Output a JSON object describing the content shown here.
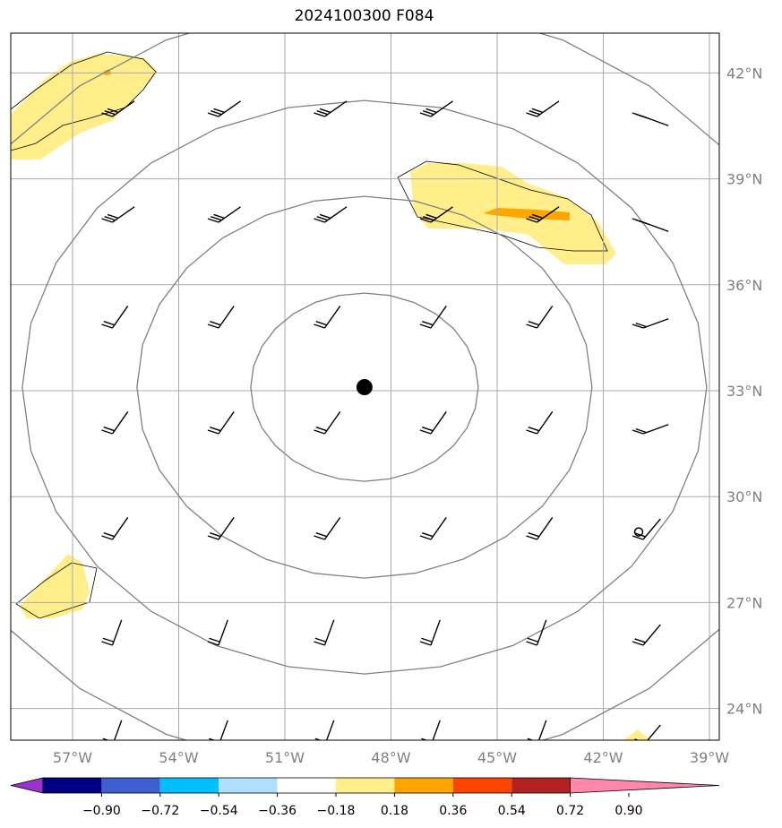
{
  "title": "2024100300 F084",
  "map": {
    "lon_range": [
      -59.3,
      -38.8
    ],
    "lat_range": [
      23,
      43
    ],
    "lon_ticks": [
      {
        "value": -57,
        "label": "57°W"
      },
      {
        "value": -54,
        "label": "54°W"
      },
      {
        "value": -51,
        "label": "51°W"
      },
      {
        "value": -48,
        "label": "48°W"
      },
      {
        "value": -45,
        "label": "45°W"
      },
      {
        "value": -42,
        "label": "42°W"
      },
      {
        "value": -39,
        "label": "39°W"
      }
    ],
    "lat_ticks": [
      {
        "value": 42,
        "label": "42°N"
      },
      {
        "value": 39,
        "label": "39°N"
      },
      {
        "value": 36,
        "label": "36°N"
      },
      {
        "value": 33,
        "label": "33°N"
      },
      {
        "value": 30,
        "label": "30°N"
      },
      {
        "value": 27,
        "label": "27°N"
      },
      {
        "value": 24,
        "label": "24°N"
      }
    ],
    "storm_center": {
      "lon": -48.75,
      "lat": 33.1
    },
    "marker_circle": {
      "lon": -41.0,
      "lat": 29.0
    },
    "colors": {
      "grid": "#aaaaaa",
      "rings": "#808080",
      "shade_low": "#ffee8a",
      "shade_mid": "#ffa500",
      "barbs": "#000000"
    }
  },
  "colorbar": {
    "ticks": [
      "−0.90",
      "−0.72",
      "−0.54",
      "−0.36",
      "−0.18",
      "0.18",
      "0.36",
      "0.54",
      "0.72",
      "0.90"
    ],
    "colors": [
      "#9933cc",
      "#000080",
      "#3f5fcf",
      "#00bfff",
      "#b0e0ff",
      "#ffffff",
      "#ffee8a",
      "#ffa500",
      "#ff4500",
      "#b22222",
      "#ff88aa"
    ]
  }
}
